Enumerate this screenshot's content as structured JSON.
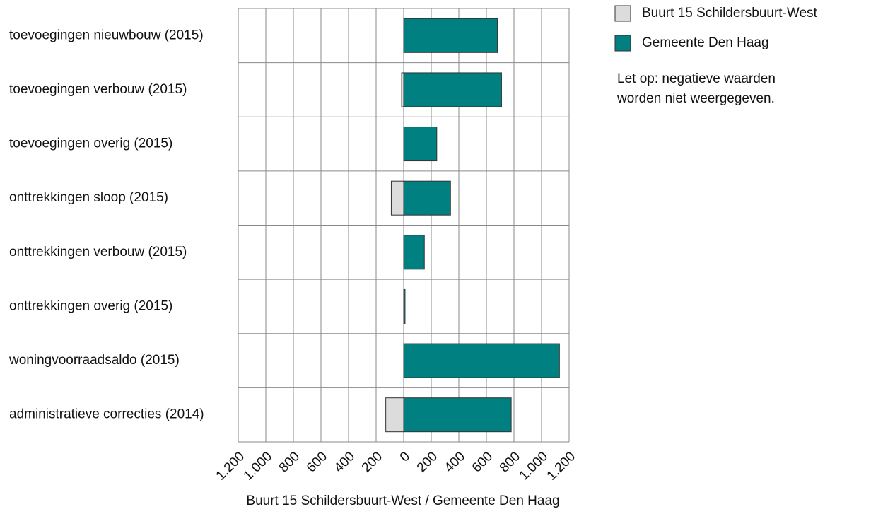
{
  "chart_data": {
    "type": "butterfly",
    "xlabel": "Buurt 15 Schildersbuurt-West / Gemeente Den Haag",
    "note": [
      "Let op: negatieve waarden",
      "worden niet weergegeven."
    ],
    "categories": [
      "toevoegingen nieuwbouw (2015)",
      "toevoegingen verbouw (2015)",
      "toevoegingen overig (2015)",
      "onttrekkingen sloop (2015)",
      "onttrekkingen verbouw (2015)",
      "onttrekkingen overig (2015)",
      "woningvoorraadsaldo (2015)",
      "administratieve correcties (2014)"
    ],
    "series": [
      {
        "name": "Buurt 15 Schildersbuurt-West",
        "color": "#dcdcdc",
        "side": "left",
        "values": [
          0,
          15,
          0,
          90,
          0,
          0,
          0,
          130
        ]
      },
      {
        "name": "Gemeente Den Haag",
        "color": "#008080",
        "side": "right",
        "values": [
          680,
          710,
          240,
          340,
          150,
          10,
          1130,
          780
        ]
      }
    ],
    "xlim": [
      0,
      1200
    ],
    "xticks_left": [
      {
        "value": 1200,
        "label": "1.200"
      },
      {
        "value": 1000,
        "label": "1.000"
      },
      800,
      600,
      400,
      200
    ],
    "xticks_right": [
      0,
      200,
      400,
      600,
      800,
      {
        "value": 1000,
        "label": "1.000"
      },
      {
        "value": 1200,
        "label": "1.200"
      }
    ],
    "grid": true,
    "legend": "top-right"
  }
}
